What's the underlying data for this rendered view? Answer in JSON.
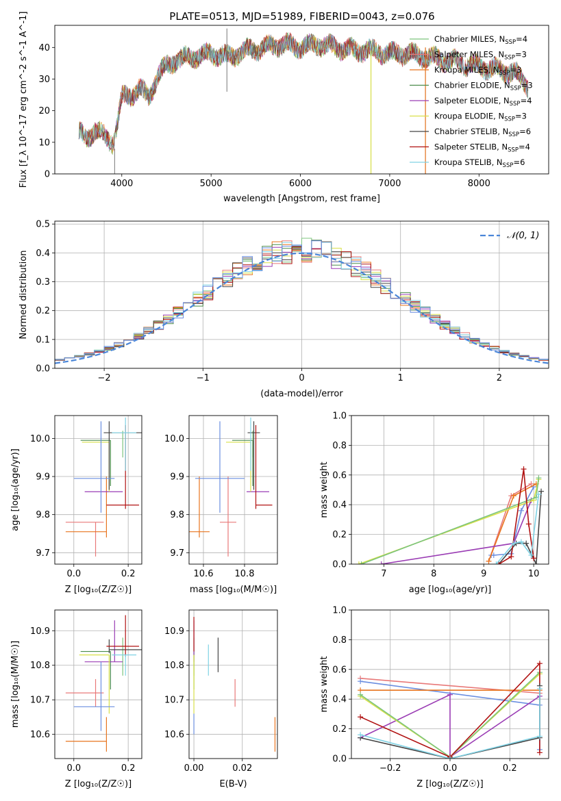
{
  "title": "PLATE=0513, MJD=51989, FIBERID=0043, z=0.076",
  "models": [
    {
      "name": "Chabrier MILES",
      "nssp": "4",
      "color": "#7cc47c"
    },
    {
      "name": "Salpeter MILES",
      "nssp": "3",
      "color": "#e87878"
    },
    {
      "name": "Kroupa MILES",
      "nssp": "3",
      "color": "#e8741e"
    },
    {
      "name": "Chabrier ELODIE",
      "nssp": "3",
      "color": "#4a8c4a"
    },
    {
      "name": "Salpeter ELODIE",
      "nssp": "4",
      "color": "#9a3cb4"
    },
    {
      "name": "Kroupa ELODIE",
      "nssp": "3",
      "color": "#d8e048"
    },
    {
      "name": "Chabrier STELIB",
      "nssp": "6",
      "color": "#444444"
    },
    {
      "name": "Salpeter STELIB",
      "nssp": "4",
      "color": "#b01010"
    },
    {
      "name": "Kroupa STELIB",
      "nssp": "6",
      "color": "#7fd2e4"
    }
  ],
  "legend_suffix": "N",
  "legend_sub": "SSP",
  "chart_data": [
    {
      "type": "line",
      "id": "spectrum",
      "xlabel": "wavelength [Angstrom, rest frame]",
      "ylabel": "Flux [f_λ 10^-17 erg cm^-2 s^-1 A^-1]",
      "xlim": [
        3250,
        8780
      ],
      "ylim": [
        0,
        47
      ],
      "xticks": [
        "4000",
        "5000",
        "6000",
        "7000",
        "8000"
      ],
      "yticks": [
        "0",
        "10",
        "20",
        "30",
        "40"
      ],
      "spectrum_envelope": {
        "x": [
          3520,
          3600,
          3700,
          3800,
          3900,
          3950,
          4000,
          4100,
          4200,
          4300,
          4400,
          4500,
          4600,
          4800,
          5000,
          5200,
          5400,
          5600,
          5800,
          6000,
          6200,
          6400,
          6600,
          6800,
          7000,
          7200,
          7400,
          7600,
          7800,
          8000,
          8200,
          8400,
          8550
        ],
        "y": [
          13,
          11,
          14,
          12,
          10,
          16,
          24,
          25,
          27,
          24,
          31,
          34,
          36,
          37,
          38,
          37,
          39,
          40,
          41,
          40,
          41,
          40,
          39,
          39,
          38,
          38,
          37,
          36,
          35,
          34,
          33,
          32,
          28
        ]
      },
      "features": [
        {
          "x": 5177,
          "y": [
            26,
            46
          ],
          "label": ""
        },
        {
          "x": 3920,
          "y": [
            0,
            8
          ],
          "label": ""
        },
        {
          "x": 6790,
          "y": [
            0,
            39
          ],
          "label": ""
        },
        {
          "x": 7400,
          "y": [
            0,
            40
          ],
          "label": ""
        }
      ]
    },
    {
      "type": "step",
      "id": "residual-hist",
      "xlabel": "(data-model)/error",
      "ylabel": "Normed distribution",
      "xlim": [
        -2.5,
        2.5
      ],
      "ylim": [
        0,
        0.51
      ],
      "xticks": [
        "−2",
        "−1",
        "0",
        "1",
        "2"
      ],
      "yticks": [
        "0.0",
        "0.1",
        "0.2",
        "0.3",
        "0.4",
        "0.5"
      ],
      "legend": "𝒩(0, 1)",
      "gaussian": {
        "mu": 0,
        "sigma": 1
      }
    },
    {
      "type": "errorbar",
      "id": "age-vs-z",
      "xlabel": "Z [log₁₀(Z/Z☉)]",
      "ylabel": "age  [log₁₀(age/yr)]",
      "xlim": [
        -0.07,
        0.25
      ],
      "ylim": [
        9.67,
        10.06
      ],
      "xticks": [
        "0.0",
        "0.2"
      ],
      "xtick_values": [
        0,
        0.2
      ],
      "yticks": [
        "9.7",
        "9.8",
        "9.9",
        "10.0"
      ],
      "ytick_values": [
        9.7,
        9.8,
        9.9,
        10.0
      ],
      "points": [
        {
          "m": 0,
          "x": 0.18,
          "xe": [
            0.0,
            0.0
          ],
          "y": 9.99,
          "ye": [
            0.04,
            0.03
          ]
        },
        {
          "m": 1,
          "x": 0.08,
          "xe": [
            0.11,
            0.03
          ],
          "y": 9.78,
          "ye": [
            0.09,
            0.0
          ]
        },
        {
          "m": 2,
          "x": 0.12,
          "xe": [
            0.15,
            0.0
          ],
          "y": 9.755,
          "ye": [
            0.015,
            0.145
          ]
        },
        {
          "m": 3,
          "x": 0.135,
          "xe": [
            0.11,
            0.0
          ],
          "y": 9.995,
          "ye": [
            0.12,
            0.0
          ]
        },
        {
          "m": 4,
          "x": 0.15,
          "xe": [
            0.11,
            0.03
          ],
          "y": 9.86,
          "ye": [
            0.0,
            0.0
          ]
        },
        {
          "m": 5,
          "x": 0.13,
          "xe": [
            0.1,
            0.0
          ],
          "y": 9.99,
          "ye": [
            0.13,
            0.0
          ]
        },
        {
          "m": 6,
          "x": 0.13,
          "xe": [
            0.02,
            0.12
          ],
          "y": 10.015,
          "ye": [
            0.15,
            0.03
          ]
        },
        {
          "m": 7,
          "x": 0.19,
          "xe": [
            0.07,
            0.05
          ],
          "y": 9.825,
          "ye": [
            0.01,
            0.21
          ]
        },
        {
          "m": 8,
          "x": 0.19,
          "xe": [
            0.05,
            0.04
          ],
          "y": 10.015,
          "ye": [
            0.1,
            0.04
          ]
        },
        {
          "m": 9,
          "x": 0.1,
          "xe": [
            0.1,
            0.05
          ],
          "y": 9.895,
          "ye": [
            0.09,
            0.15
          ],
          "color": "#6a8ee0"
        }
      ]
    },
    {
      "type": "errorbar",
      "id": "age-vs-mass",
      "xlabel": "mass [log₁₀(M/M☉)]",
      "ylabel": "",
      "xlim": [
        10.53,
        10.96
      ],
      "ylim": [
        9.67,
        10.06
      ],
      "xticks": [
        "10.6",
        "10.8"
      ],
      "xtick_values": [
        10.6,
        10.8
      ],
      "yticks": [
        "9.7",
        "9.8",
        "9.9",
        "10.0"
      ],
      "ytick_values": [
        9.7,
        9.8,
        9.9,
        10.0
      ],
      "points": [
        {
          "m": 0,
          "x": 10.84,
          "xe": [
            0.0,
            0.0
          ],
          "y": 9.99,
          "ye": [
            0.04,
            0.03
          ]
        },
        {
          "m": 1,
          "x": 10.72,
          "xe": [
            0.04,
            0.04
          ],
          "y": 9.78,
          "ye": [
            0.09,
            0.12
          ]
        },
        {
          "m": 2,
          "x": 10.58,
          "xe": [
            0.05,
            0.05
          ],
          "y": 9.755,
          "ye": [
            0.015,
            0.145
          ]
        },
        {
          "m": 3,
          "x": 10.84,
          "xe": [
            0.1,
            0.0
          ],
          "y": 9.995,
          "ye": [
            0.12,
            0.0
          ]
        },
        {
          "m": 4,
          "x": 10.81,
          "xe": [
            0.0,
            0.11
          ],
          "y": 9.86,
          "ye": [
            0.0,
            0.0
          ]
        },
        {
          "m": 5,
          "x": 10.83,
          "xe": [
            0.12,
            0.0
          ],
          "y": 9.99,
          "ye": [
            0.13,
            0.0
          ]
        },
        {
          "m": 6,
          "x": 10.845,
          "xe": [
            0.03,
            0.03
          ],
          "y": 10.015,
          "ye": [
            0.15,
            0.03
          ]
        },
        {
          "m": 7,
          "x": 10.855,
          "xe": [
            0.0,
            0.08
          ],
          "y": 9.825,
          "ye": [
            0.01,
            0.21
          ]
        },
        {
          "m": 8,
          "x": 10.83,
          "xe": [
            0.0,
            0.0
          ],
          "y": 10.015,
          "ye": [
            0.1,
            0.04
          ]
        },
        {
          "m": 9,
          "x": 10.68,
          "xe": [
            0.12,
            0.12
          ],
          "y": 9.895,
          "ye": [
            0.09,
            0.15
          ],
          "color": "#6a8ee0"
        }
      ]
    },
    {
      "type": "line",
      "id": "weight-vs-age",
      "xlabel": "age  [log₁₀(age/yr)]",
      "ylabel": "mass weight",
      "xlim": [
        6.35,
        10.3
      ],
      "ylim": [
        0,
        1.0
      ],
      "xticks": [
        "7",
        "8",
        "9",
        "10"
      ],
      "xtick_values": [
        7,
        8,
        9,
        10
      ],
      "yticks": [
        "0.0",
        "0.2",
        "0.4",
        "0.6",
        "0.8",
        "1.0"
      ],
      "ytick_values": [
        0,
        0.2,
        0.4,
        0.6,
        0.8,
        1.0
      ],
      "series": [
        {
          "m": 9,
          "x": [
            9.15,
            9.2,
            9.55,
            9.75,
            10.0
          ],
          "y": [
            0.06,
            0.06,
            0.07,
            0.36,
            0.52
          ],
          "color": "#6a8ee0"
        },
        {
          "m": 1,
          "x": [
            9.1,
            9.55,
            9.95
          ],
          "y": [
            0.02,
            0.46,
            0.54
          ]
        },
        {
          "m": 2,
          "x": [
            9.1,
            9.6,
            10.05
          ],
          "y": [
            0.02,
            0.46,
            0.54
          ]
        },
        {
          "m": 4,
          "x": [
            6.95,
            9.6,
            9.95
          ],
          "y": [
            0.0,
            0.14,
            0.43
          ]
        },
        {
          "m": 5,
          "x": [
            6.5,
            10.0,
            10.1
          ],
          "y": [
            0.0,
            0.43,
            0.57
          ]
        },
        {
          "m": 0,
          "x": [
            6.55,
            10.05,
            10.1
          ],
          "y": [
            0.0,
            0.45,
            0.58
          ]
        },
        {
          "m": 6,
          "x": [
            9.3,
            9.65,
            9.85,
            10.05,
            10.15
          ],
          "y": [
            0.0,
            0.14,
            0.14,
            0.0,
            0.49
          ]
        },
        {
          "m": 7,
          "x": [
            9.3,
            9.55,
            9.8,
            9.9,
            10.0
          ],
          "y": [
            0.0,
            0.05,
            0.64,
            0.27,
            0.04
          ]
        },
        {
          "m": 8,
          "x": [
            9.25,
            9.6,
            9.75,
            9.95,
            10.1
          ],
          "y": [
            0.0,
            0.14,
            0.15,
            0.06,
            0.47
          ]
        }
      ]
    },
    {
      "type": "errorbar",
      "id": "mass-vs-z",
      "xlabel": "Z [log₁₀(Z/Z☉)]",
      "ylabel": "mass [log₁₀(M/M☉)]",
      "xlim": [
        -0.07,
        0.25
      ],
      "ylim": [
        10.53,
        10.96
      ],
      "xticks": [
        "0.0",
        "0.2"
      ],
      "xtick_values": [
        0,
        0.2
      ],
      "yticks": [
        "10.6",
        "10.7",
        "10.8",
        "10.9"
      ],
      "ytick_values": [
        10.6,
        10.7,
        10.8,
        10.9
      ],
      "points": [
        {
          "m": 0,
          "x": 0.18,
          "xe": [
            0.0,
            0.0
          ],
          "y": 10.83,
          "ye": [
            0.06,
            0.05
          ]
        },
        {
          "m": 1,
          "x": 0.08,
          "xe": [
            0.11,
            0.03
          ],
          "y": 10.72,
          "ye": [
            0.04,
            0.04
          ]
        },
        {
          "m": 2,
          "x": 0.12,
          "xe": [
            0.15,
            0.0
          ],
          "y": 10.58,
          "ye": [
            0.03,
            0.07
          ]
        },
        {
          "m": 3,
          "x": 0.135,
          "xe": [
            0.11,
            0.0
          ],
          "y": 10.84,
          "ye": [
            0.11,
            0.0
          ]
        },
        {
          "m": 4,
          "x": 0.15,
          "xe": [
            0.11,
            0.03
          ],
          "y": 10.81,
          "ye": [
            0.0,
            0.12
          ]
        },
        {
          "m": 5,
          "x": 0.13,
          "xe": [
            0.11,
            0.0
          ],
          "y": 10.83,
          "ye": [
            0.17,
            0.0
          ]
        },
        {
          "m": 6,
          "x": 0.13,
          "xe": [
            0.0,
            0.12
          ],
          "y": 10.845,
          "ye": [
            0.01,
            0.03
          ]
        },
        {
          "m": 7,
          "x": 0.19,
          "xe": [
            0.07,
            0.05
          ],
          "y": 10.855,
          "ye": [
            0.03,
            0.09
          ]
        },
        {
          "m": 8,
          "x": 0.19,
          "xe": [
            0.05,
            0.04
          ],
          "y": 10.83,
          "ye": [
            0.06,
            0.0
          ]
        },
        {
          "m": 9,
          "x": 0.1,
          "xe": [
            0.1,
            0.05
          ],
          "y": 10.68,
          "ye": [
            0.07,
            0.13
          ],
          "color": "#6a8ee0"
        }
      ]
    },
    {
      "type": "errorbar",
      "id": "mass-vs-ebv",
      "xlabel": "E(B-V)",
      "ylabel": "",
      "xlim": [
        -0.002,
        0.0345
      ],
      "ylim": [
        10.53,
        10.96
      ],
      "xticks": [
        "0.00",
        "0.02"
      ],
      "xtick_values": [
        0,
        0.02
      ],
      "yticks": [
        "10.6",
        "10.7",
        "10.8",
        "10.9"
      ],
      "ytick_values": [
        10.6,
        10.7,
        10.8,
        10.9
      ],
      "points": [
        {
          "m": 0,
          "x": 0.0,
          "xe": [
            0,
            0
          ],
          "y": 10.83,
          "ye": [
            0.06,
            0.05
          ]
        },
        {
          "m": 1,
          "x": 0.017,
          "xe": [
            0,
            0
          ],
          "y": 10.72,
          "ye": [
            0.04,
            0.04
          ]
        },
        {
          "m": 2,
          "x": 0.0335,
          "xe": [
            0,
            0
          ],
          "y": 10.6,
          "ye": [
            0.05,
            0.05
          ]
        },
        {
          "m": 3,
          "x": 0.0,
          "xe": [
            0,
            0
          ],
          "y": 10.84,
          "ye": [
            0.11,
            0.0
          ]
        },
        {
          "m": 4,
          "x": 0.0,
          "xe": [
            0,
            0
          ],
          "y": 10.81,
          "ye": [
            0.0,
            0.12
          ]
        },
        {
          "m": 5,
          "x": 0.0,
          "xe": [
            0,
            0
          ],
          "y": 10.75,
          "ye": [
            0.09,
            0.08
          ]
        },
        {
          "m": 6,
          "x": 0.01,
          "xe": [
            0,
            0
          ],
          "y": 10.83,
          "ye": [
            0.05,
            0.05
          ]
        },
        {
          "m": 7,
          "x": 0.0,
          "xe": [
            0,
            0
          ],
          "y": 10.88,
          "ye": [
            0.04,
            0.06
          ]
        },
        {
          "m": 8,
          "x": 0.006,
          "xe": [
            0,
            0
          ],
          "y": 10.81,
          "ye": [
            0.04,
            0.05
          ]
        },
        {
          "m": 9,
          "x": 0.0,
          "xe": [
            0,
            0
          ],
          "y": 10.63,
          "ye": [
            0.03,
            0.03
          ],
          "color": "#6a8ee0"
        }
      ]
    },
    {
      "type": "line",
      "id": "weight-vs-z",
      "xlabel": "Z [log₁₀(Z/Z☉)]",
      "ylabel": "mass weight",
      "xlim": [
        -0.33,
        0.33
      ],
      "ylim": [
        0,
        1.0
      ],
      "xticks": [
        "−0.2",
        "0.0",
        "0.2"
      ],
      "xtick_values": [
        -0.2,
        0,
        0.2
      ],
      "yticks": [
        "0.0",
        "0.2",
        "0.4",
        "0.6",
        "0.8",
        "1.0"
      ],
      "ytick_values": [
        0,
        0.2,
        0.4,
        0.6,
        0.8,
        1.0
      ],
      "series": [
        {
          "m": 1,
          "x": [
            -0.3,
            0.3
          ],
          "y": [
            0.54,
            0.44
          ]
        },
        {
          "m": 9,
          "x": [
            -0.3,
            0.3,
            0.3
          ],
          "y": [
            0.52,
            0.36,
            0.06
          ],
          "color": "#6a8ee0"
        },
        {
          "m": 2,
          "x": [
            -0.3,
            0.3
          ],
          "y": [
            0.46,
            0.46
          ]
        },
        {
          "m": 4,
          "x": [
            -0.3,
            0.0,
            0.0,
            0.3
          ],
          "y": [
            0.14,
            0.43,
            0.01,
            0.42
          ]
        },
        {
          "m": 5,
          "x": [
            -0.3,
            0.0,
            0.3
          ],
          "y": [
            0.42,
            0.01,
            0.57
          ]
        },
        {
          "m": 0,
          "x": [
            -0.3,
            0.0,
            0.3
          ],
          "y": [
            0.43,
            0.01,
            0.58
          ]
        },
        {
          "m": 7,
          "x": [
            -0.3,
            0.0,
            0.3,
            0.3
          ],
          "y": [
            0.28,
            0.01,
            0.64,
            0.04
          ]
        },
        {
          "m": 6,
          "x": [
            -0.3,
            0.0,
            0.3,
            0.3
          ],
          "y": [
            0.14,
            0.0,
            0.14,
            0.49
          ]
        },
        {
          "m": 8,
          "x": [
            -0.3,
            0.0,
            0.3,
            0.3
          ],
          "y": [
            0.16,
            0.0,
            0.15,
            0.47
          ]
        }
      ]
    }
  ]
}
